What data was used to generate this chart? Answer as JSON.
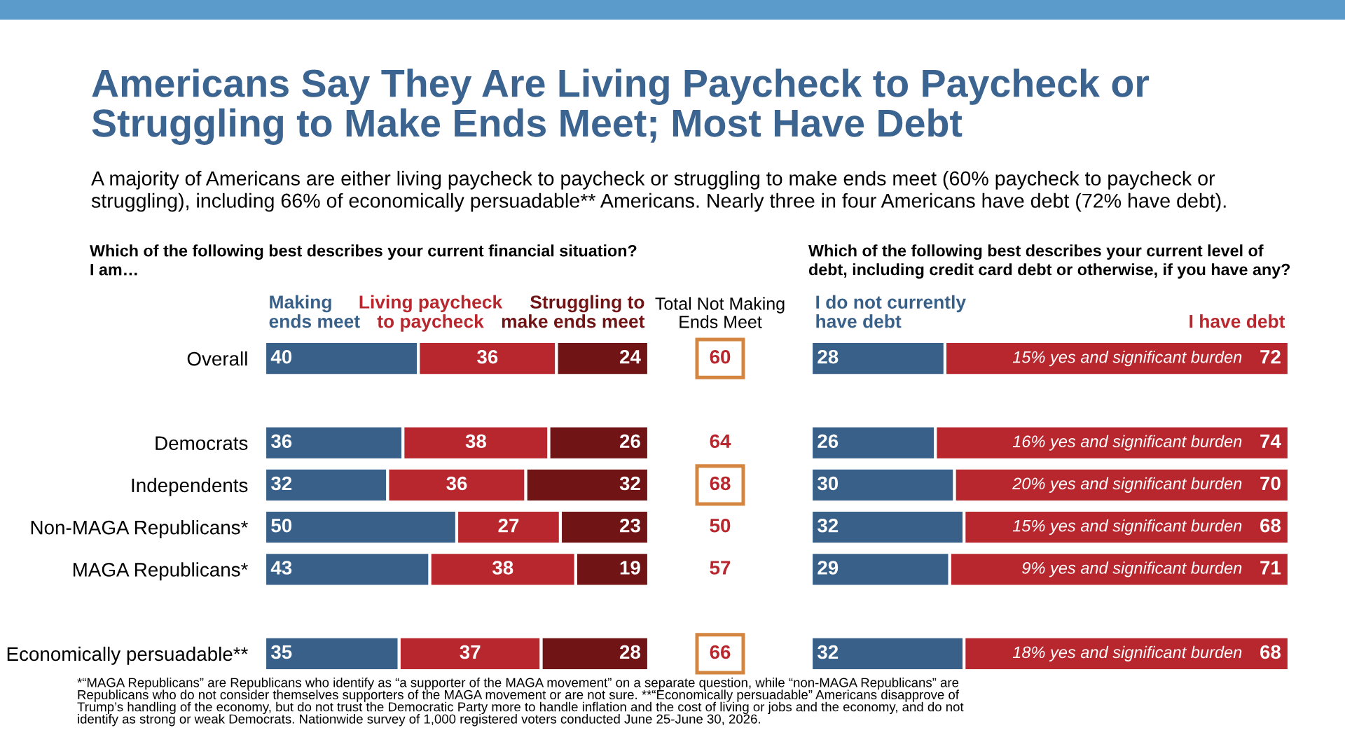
{
  "chart_data": [
    {
      "type": "bar",
      "orientation": "horizontal",
      "stacked": true,
      "title": "Americans Say They Are Living Paycheck to Paycheck or\nStruggling to Make Ends Meet; Most Have Debt",
      "subtitle": "A majority of Americans are either living paycheck to paycheck or struggling to make ends meet (60% paycheck to paycheck or\nstruggling), including 66% of economically persuadable** Americans. Nearly three in four Americans have debt (72% have debt).",
      "categories": [
        "Overall",
        null,
        "Democrats",
        "Independents",
        "Non-MAGA Republicans*",
        "MAGA Republicans*",
        null,
        "Economically persuadable**"
      ],
      "series": [
        {
          "name": "Making\nends meet",
          "color": "#386089",
          "values": [
            40,
            null,
            36,
            32,
            50,
            43,
            null,
            35
          ]
        },
        {
          "name": "Living paycheck\nto paycheck",
          "color": "#b8272e",
          "values": [
            36,
            null,
            38,
            36,
            27,
            38,
            null,
            37
          ]
        },
        {
          "name": "Struggling to\nmake ends meet",
          "color": "#701416",
          "values": [
            24,
            null,
            26,
            32,
            23,
            19,
            null,
            28
          ]
        }
      ],
      "xlim": [
        0,
        100
      ],
      "data_labels": true,
      "legend": "top",
      "tick_labels": "y",
      "annotations": [
        "Which of the following best describes your current financial situation?\nI am…",
        "*“MAGA Republicans” are Republicans who identify as “a supporter of the MAGA movement” on a separate question, while “non-MAGA Republicans” are\nRepublicans who do not consider themselves supporters of the MAGA movement or are not sure. **“Economically persuadable” Americans disapprove of\nTrump’s handling of the economy, but do not trust the Democratic Party more to handle inflation and the cost of living or jobs and the economy, and do not\nidentify as strong or weak Democrats. Nationwide survey of 1,000 registered voters conducted June 25-June 30, 2026."
      ]
    },
    {
      "type": "other",
      "title": "Total Not Making\nEnds Meet",
      "values": [
        60,
        null,
        64,
        68,
        50,
        57,
        null,
        66
      ],
      "color": "#b8272e",
      "colors": [
        "#d4853f",
        null,
        null,
        "#d4853f",
        null,
        null,
        null,
        "#d4853f"
      ],
      "data_labels": true
    },
    {
      "type": "bar",
      "orientation": "horizontal",
      "stacked": true,
      "title": "Which of the following best describes your current level of\ndebt, including credit card debt or otherwise, if you have any?",
      "categories": [
        null,
        null,
        null,
        null,
        null,
        null,
        null,
        null
      ],
      "series": [
        {
          "name": "I do not currently\nhave debt",
          "color": "#386089",
          "values": [
            28,
            null,
            26,
            30,
            32,
            29,
            null,
            32
          ]
        },
        {
          "name": "I have debt",
          "color": "#b8272e",
          "values": [
            72,
            null,
            74,
            70,
            68,
            71,
            null,
            68
          ]
        }
      ],
      "xlim": [
        0,
        100
      ],
      "data_labels": true,
      "legend": "top",
      "tick_labels": false,
      "annotations": [
        "15% yes and significant burden",
        "16% yes and significant burden",
        "20% yes and significant burden",
        "15% yes and significant burden",
        "9% yes and significant burden",
        "18% yes and significant burden"
      ]
    }
  ]
}
